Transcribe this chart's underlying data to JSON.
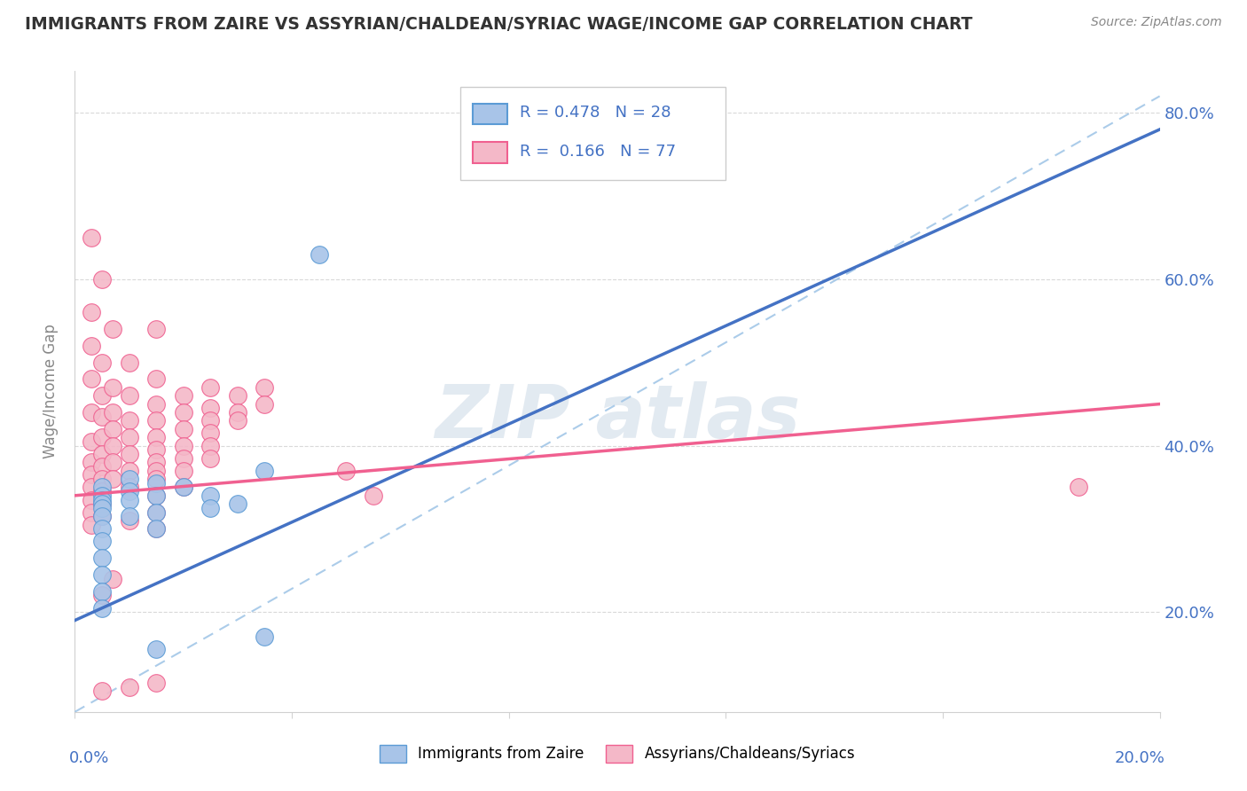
{
  "title": "IMMIGRANTS FROM ZAIRE VS ASSYRIAN/CHALDEAN/SYRIAC WAGE/INCOME GAP CORRELATION CHART",
  "source": "Source: ZipAtlas.com",
  "ylabel": "Wage/Income Gap",
  "r_blue": 0.478,
  "n_blue": 28,
  "r_pink": 0.166,
  "n_pink": 77,
  "legend_label_blue": "Immigrants from Zaire",
  "legend_label_pink": "Assyrians/Chaldeans/Syriacs",
  "blue_fill": "#a8c4e8",
  "pink_fill": "#f4b8c8",
  "blue_edge": "#5b9bd5",
  "pink_edge": "#f06090",
  "blue_line": "#4472c4",
  "pink_line": "#f06090",
  "text_color": "#4472c4",
  "dash_color": "#9dc3e6",
  "blue_scatter": [
    [
      0.5,
      35.0
    ],
    [
      0.5,
      34.0
    ],
    [
      0.5,
      33.5
    ],
    [
      0.5,
      33.0
    ],
    [
      0.5,
      32.5
    ],
    [
      0.5,
      31.5
    ],
    [
      0.5,
      30.0
    ],
    [
      0.5,
      28.5
    ],
    [
      0.5,
      26.5
    ],
    [
      0.5,
      24.5
    ],
    [
      0.5,
      22.5
    ],
    [
      0.5,
      20.5
    ],
    [
      1.0,
      36.0
    ],
    [
      1.0,
      34.5
    ],
    [
      1.0,
      33.5
    ],
    [
      1.0,
      31.5
    ],
    [
      1.5,
      35.5
    ],
    [
      1.5,
      34.0
    ],
    [
      1.5,
      32.0
    ],
    [
      1.5,
      30.0
    ],
    [
      2.0,
      35.0
    ],
    [
      2.5,
      34.0
    ],
    [
      2.5,
      32.5
    ],
    [
      3.0,
      33.0
    ],
    [
      3.5,
      37.0
    ],
    [
      4.5,
      63.0
    ],
    [
      1.5,
      15.5
    ],
    [
      3.5,
      17.0
    ]
  ],
  "pink_scatter": [
    [
      0.3,
      65.0
    ],
    [
      0.3,
      56.0
    ],
    [
      0.3,
      52.0
    ],
    [
      0.3,
      48.0
    ],
    [
      0.3,
      44.0
    ],
    [
      0.3,
      40.5
    ],
    [
      0.3,
      38.0
    ],
    [
      0.3,
      36.5
    ],
    [
      0.3,
      35.0
    ],
    [
      0.3,
      33.5
    ],
    [
      0.3,
      32.0
    ],
    [
      0.3,
      30.5
    ],
    [
      0.5,
      60.0
    ],
    [
      0.5,
      50.0
    ],
    [
      0.5,
      46.0
    ],
    [
      0.5,
      43.5
    ],
    [
      0.5,
      41.0
    ],
    [
      0.5,
      39.0
    ],
    [
      0.5,
      37.5
    ],
    [
      0.5,
      36.0
    ],
    [
      0.5,
      34.5
    ],
    [
      0.5,
      33.0
    ],
    [
      0.5,
      31.5
    ],
    [
      0.5,
      22.0
    ],
    [
      0.7,
      54.0
    ],
    [
      0.7,
      47.0
    ],
    [
      0.7,
      44.0
    ],
    [
      0.7,
      42.0
    ],
    [
      0.7,
      40.0
    ],
    [
      0.7,
      38.0
    ],
    [
      0.7,
      36.0
    ],
    [
      0.7,
      24.0
    ],
    [
      1.0,
      50.0
    ],
    [
      1.0,
      46.0
    ],
    [
      1.0,
      43.0
    ],
    [
      1.0,
      41.0
    ],
    [
      1.0,
      39.0
    ],
    [
      1.0,
      37.0
    ],
    [
      1.0,
      35.0
    ],
    [
      1.0,
      31.0
    ],
    [
      1.5,
      54.0
    ],
    [
      1.5,
      48.0
    ],
    [
      1.5,
      45.0
    ],
    [
      1.5,
      43.0
    ],
    [
      1.5,
      41.0
    ],
    [
      1.5,
      39.5
    ],
    [
      1.5,
      38.0
    ],
    [
      1.5,
      37.0
    ],
    [
      1.5,
      36.0
    ],
    [
      1.5,
      34.0
    ],
    [
      1.5,
      32.0
    ],
    [
      1.5,
      30.0
    ],
    [
      2.0,
      46.0
    ],
    [
      2.0,
      44.0
    ],
    [
      2.0,
      42.0
    ],
    [
      2.0,
      40.0
    ],
    [
      2.0,
      38.5
    ],
    [
      2.0,
      37.0
    ],
    [
      2.0,
      35.0
    ],
    [
      2.5,
      47.0
    ],
    [
      2.5,
      44.5
    ],
    [
      2.5,
      43.0
    ],
    [
      2.5,
      41.5
    ],
    [
      2.5,
      40.0
    ],
    [
      2.5,
      38.5
    ],
    [
      3.0,
      46.0
    ],
    [
      3.0,
      44.0
    ],
    [
      3.0,
      43.0
    ],
    [
      3.5,
      47.0
    ],
    [
      3.5,
      45.0
    ],
    [
      5.0,
      37.0
    ],
    [
      5.5,
      34.0
    ],
    [
      0.5,
      10.5
    ],
    [
      1.0,
      11.0
    ],
    [
      1.5,
      11.5
    ],
    [
      18.5,
      35.0
    ]
  ],
  "xlim": [
    0.0,
    20.0
  ],
  "ylim": [
    8.0,
    85.0
  ],
  "yticks": [
    20.0,
    40.0,
    60.0,
    80.0
  ],
  "xticks": [
    0.0,
    4.0,
    8.0,
    12.0,
    16.0,
    20.0
  ],
  "blue_line_x": [
    0.0,
    20.0
  ],
  "blue_line_y": [
    19.0,
    78.0
  ],
  "pink_line_x": [
    0.0,
    20.0
  ],
  "pink_line_y": [
    34.0,
    45.0
  ],
  "dash_line_x": [
    0.0,
    20.0
  ],
  "dash_line_y": [
    8.0,
    82.0
  ]
}
